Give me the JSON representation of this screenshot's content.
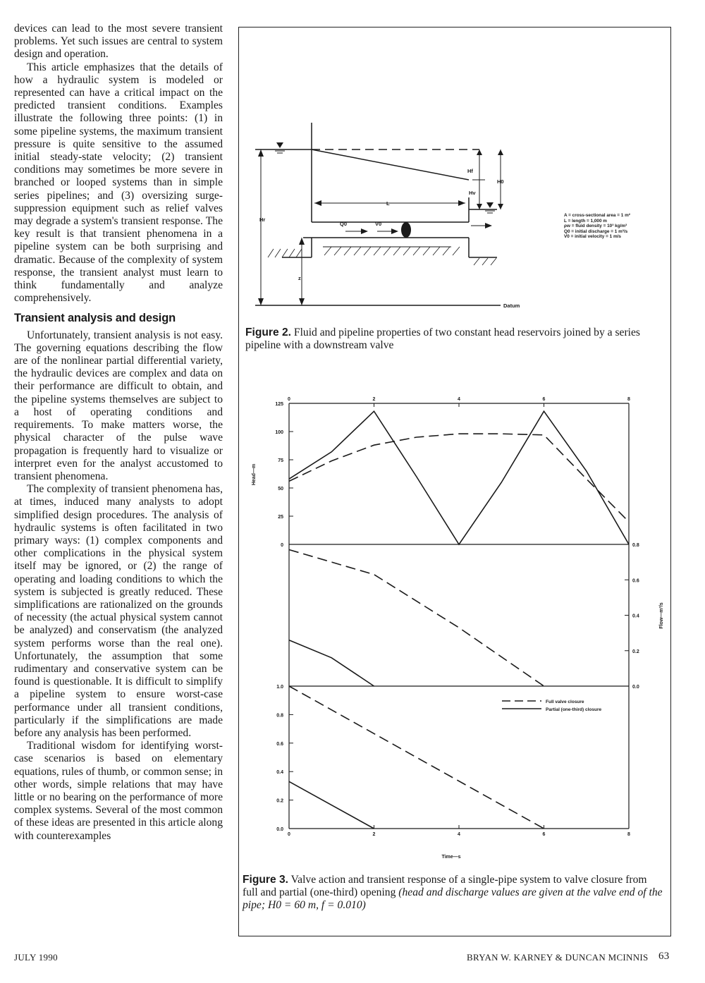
{
  "article": {
    "p1": "devices can lead to the most severe transient problems. Yet such issues are central to system design and operation.",
    "p2": "This article emphasizes that the details of how a hydraulic system is modeled or represented can have a critical impact on the predicted transient conditions. Examples illustrate the following three points: (1) in some pipeline systems, the maximum transient pressure is quite sensitive to the assumed initial steady-state velocity; (2) transient conditions may sometimes be more severe in branched or looped systems than in simple series pipelines; and (3) oversizing surge-suppression equipment such as relief valves may degrade a system's transient response. The key result is that transient phenomena in a pipeline system can be both surprising and dramatic. Because of the complexity of system response, the transient analyst must learn to think fundamentally and analyze comprehensively.",
    "heading": "Transient analysis and design",
    "p3": "Unfortunately, transient analysis is not easy. The governing equations describing the flow are of the nonlinear partial differential variety, the hydraulic devices are complex and data on their performance are difficult to obtain, and the pipeline systems themselves are subject to a host of operating conditions and requirements. To make matters worse, the physical character of the pulse wave propagation is frequently hard to visualize or interpret even for the analyst accustomed to transient phenomena.",
    "p4": "The complexity of transient phenomena has, at times, induced many analysts to adopt simplified design procedures. The analysis of hydraulic systems is often facilitated in two primary ways: (1) complex components and other complications in the physical system itself may be ignored, or (2) the range of operating and loading conditions to which the system is subjected is greatly reduced. These simplifications are rationalized on the grounds of necessity (the actual physical system cannot be analyzed) and conservatism (the analyzed system performs worse than the real one). Unfortunately, the assumption that some rudimentary and conservative system can be found is questionable. It is difficult to simplify a pipeline system to ensure worst-case performance under all transient conditions, particularly if the simplifications are made before any analysis has been performed.",
    "p5": "Traditional wisdom for identifying worst-case scenarios is based on elementary equations, rules of thumb, or common sense; in other words, simple relations that may have little or no bearing on the performance of more complex systems. Several of the most common of these ideas are presented in this article along with counterexamples"
  },
  "figure2": {
    "caption_label": "Figure 2.",
    "caption_text": "Fluid and pipeline properties of two constant head reservoirs joined by a series pipeline with a downstream valve",
    "labels": {
      "hf": "Hf",
      "ho": "H0",
      "hv": "Hv",
      "hr": "Hr",
      "L": "L",
      "Q0": "Q0",
      "V0": "V0",
      "A": "A",
      "z": "z",
      "datum": "Datum"
    },
    "legend": [
      "A = cross-sectional area = 1 m²",
      "L = length = 1,000 m",
      "ρw = fluid density = 10³ kg/m³",
      "Q0 = initial discharge = 1 m³/s",
      "V0 = initial velocity = 1 m/s"
    ]
  },
  "figure3": {
    "caption_label": "Figure 3.",
    "caption_text": "Valve action and transient response of a single-pipe system to valve closure from full and partial (one-third) opening",
    "caption_italic": "(head and discharge values are given at the valve end of the pipe;",
    "caption_italic2": "H0 = 60 m,",
    "caption_italic3": "f = 0.010)",
    "ylabel_head": "Head—m",
    "ylabel_flow": "Flow—m³/s",
    "xlabel": "Time—s",
    "legend_full": "Full valve closure",
    "legend_partial": "Partial (one-third) closure"
  },
  "chart_data": [
    {
      "type": "line",
      "title": "",
      "xlabel": "",
      "ylabel": "Head—m",
      "xlim": [
        0,
        8
      ],
      "ylim": [
        0,
        125
      ],
      "x_ticks": [
        "0",
        "2",
        "4",
        "6",
        "8"
      ],
      "y_ticks": [
        "0",
        "25",
        "50",
        "75",
        "100",
        "125"
      ],
      "series": [
        {
          "name": "Partial (one-third) closure",
          "style": "solid",
          "points": [
            [
              0,
              58
            ],
            [
              1,
              82
            ],
            [
              2,
              118
            ],
            [
              3,
              60
            ],
            [
              4,
              0
            ],
            [
              5,
              55
            ],
            [
              6,
              118
            ],
            [
              7,
              65
            ],
            [
              8,
              0
            ]
          ]
        },
        {
          "name": "Full valve closure",
          "style": "dashed",
          "points": [
            [
              0,
              56
            ],
            [
              1,
              74
            ],
            [
              2,
              88
            ],
            [
              3,
              95
            ],
            [
              4,
              98
            ],
            [
              5,
              98
            ],
            [
              6,
              97
            ],
            [
              7,
              58
            ],
            [
              8,
              20
            ]
          ]
        }
      ]
    },
    {
      "type": "line",
      "title": "",
      "xlabel": "",
      "ylabel": "Flow—m³/s",
      "xlim": [
        0,
        8
      ],
      "ylim": [
        0,
        0.8
      ],
      "y_ticks": [
        "0.0",
        "0.2",
        "0.4",
        "0.6",
        "0.8"
      ],
      "series": [
        {
          "name": "Full valve closure",
          "style": "dashed",
          "points": [
            [
              0,
              0.77
            ],
            [
              2,
              0.63
            ],
            [
              4,
              0.33
            ],
            [
              6,
              0
            ]
          ]
        },
        {
          "name": "Partial (one-third) closure",
          "style": "solid",
          "points": [
            [
              0,
              0.26
            ],
            [
              1,
              0.16
            ],
            [
              2,
              0
            ]
          ]
        }
      ]
    },
    {
      "type": "line",
      "title": "",
      "xlabel": "Time—s",
      "ylabel": "",
      "xlim": [
        0,
        8
      ],
      "ylim": [
        0,
        1.0
      ],
      "x_ticks": [
        "0",
        "2",
        "4",
        "6",
        "8"
      ],
      "y_ticks": [
        "0.0",
        "0.2",
        "0.4",
        "0.6",
        "0.8",
        "1.0"
      ],
      "series": [
        {
          "name": "Full valve closure",
          "style": "dashed",
          "points": [
            [
              0,
              1.0
            ],
            [
              6,
              0
            ]
          ]
        },
        {
          "name": "Partial (one-third) closure",
          "style": "solid",
          "points": [
            [
              0,
              0.33
            ],
            [
              2,
              0
            ]
          ]
        }
      ]
    }
  ],
  "footer": {
    "left": "JULY 1990",
    "authors": "BRYAN W. KARNEY & DUNCAN MCINNIS",
    "page": "63"
  },
  "colors": {
    "ink": "#1a1a1a",
    "paper": "#ffffff"
  }
}
